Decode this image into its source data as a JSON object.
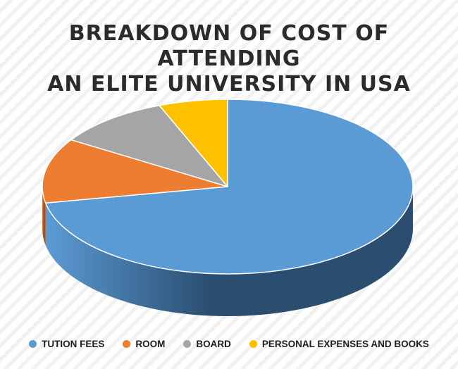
{
  "chart_data": {
    "type": "pie",
    "title_lines": [
      "BREAKDOWN OF COST OF ATTENDING",
      "AN ELITE UNIVERSITY IN USA"
    ],
    "categories": [
      "TUTION FEES",
      "ROOM",
      "BOARD",
      "PERSONAL EXPENSES AND BOOKS"
    ],
    "values": [
      72,
      12,
      10,
      6
    ],
    "colors": [
      "#5b9bd5",
      "#ed7d31",
      "#a5a5a5",
      "#ffc000"
    ],
    "side_colors": [
      "#2b4e70",
      "#a0521c",
      "#6f6f6f",
      "#b38600"
    ],
    "legend_position": "bottom",
    "style": "3d"
  }
}
